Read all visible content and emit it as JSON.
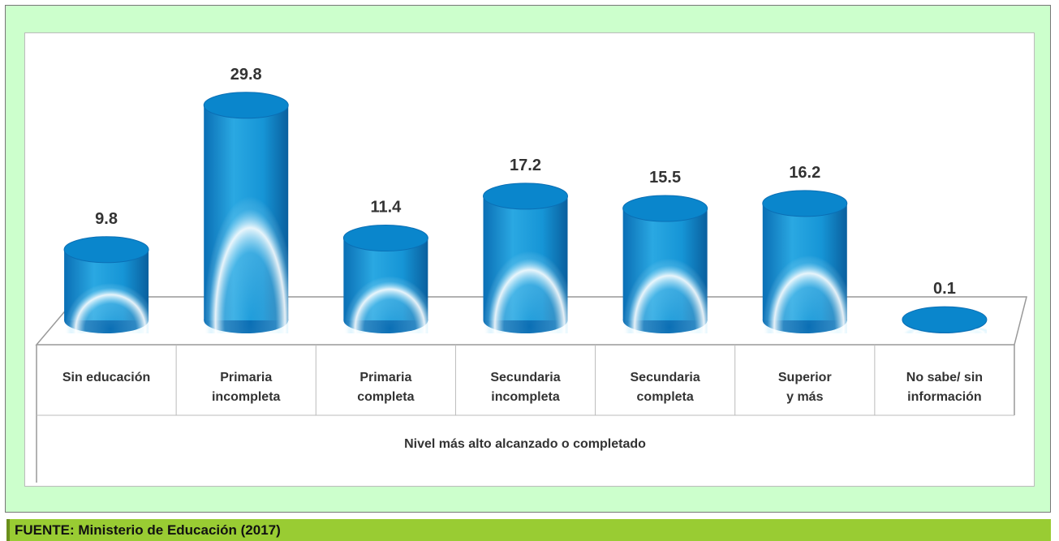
{
  "chart_data": {
    "type": "bar",
    "categories": [
      "Sin educación",
      "Primaria\nincompleta",
      "Primaria\ncompleta",
      "Secundaria\nincompleta",
      "Secundaria\ncompleta",
      "Superior\ny más",
      "No sabe/ sin\ninformación"
    ],
    "values": [
      9.8,
      29.8,
      11.4,
      17.2,
      15.5,
      16.2,
      0.1
    ],
    "color": "#0a86cc",
    "x_label": "Nivel más alto alcanzado o completado",
    "source": "FUENTE: Ministerio de Educación (2017)"
  }
}
